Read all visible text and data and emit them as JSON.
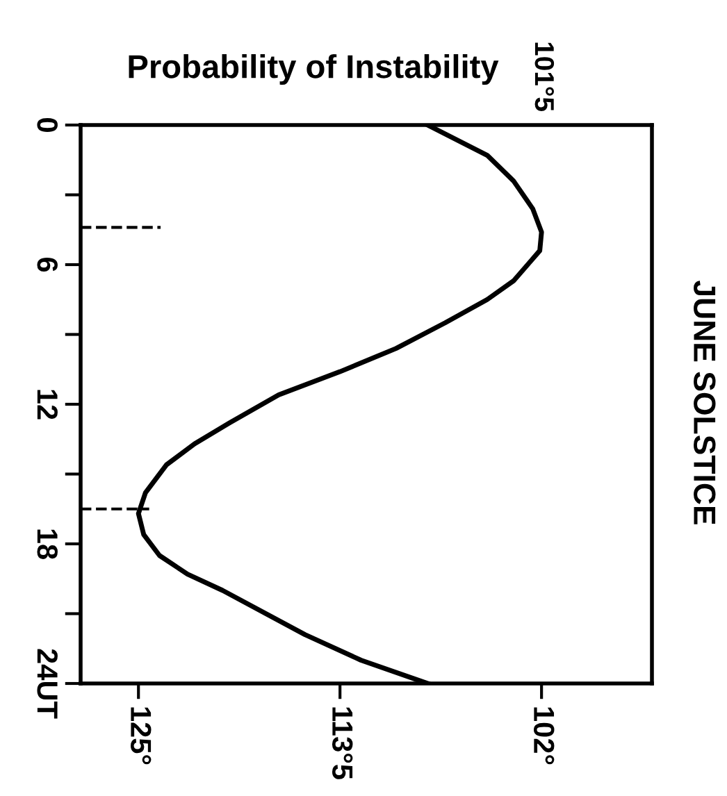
{
  "chart_data": {
    "type": "line",
    "title": "Probability of Instability",
    "annotations": [
      "JUNE SOLSTICE",
      "101°5"
    ],
    "xlim": [
      128.3,
      95.7
    ],
    "xticks": [
      {
        "value": 125,
        "label": "125°"
      },
      {
        "value": 113.5,
        "label": "113°5"
      },
      {
        "value": 102,
        "label": "102°"
      }
    ],
    "ylim": [
      24,
      0
    ],
    "yticks": [
      0,
      {
        "value": 3,
        "label": null
      },
      6,
      {
        "value": 9,
        "label": null
      },
      12,
      {
        "value": 15,
        "label": null
      },
      18,
      {
        "value": 21,
        "label": null
      },
      {
        "value": 24,
        "label": "24UT"
      }
    ],
    "series": [
      {
        "color": "#000000",
        "x": [
          108.5,
          105.1,
          103.6,
          102.5,
          102.0,
          102.1,
          103.6,
          105.1,
          107.5,
          110.3,
          113.5,
          117.0,
          119.8,
          121.8,
          123.4,
          124.6,
          125.0,
          124.7,
          123.8,
          122.2,
          120.2,
          115.5,
          112.3,
          108.5
        ],
        "values": [
          0,
          1.3,
          2.4,
          3.6,
          4.6,
          5.4,
          6.7,
          7.5,
          8.5,
          9.6,
          10.6,
          11.6,
          12.8,
          13.7,
          14.6,
          15.8,
          16.7,
          17.6,
          18.5,
          19.3,
          20.0,
          21.9,
          23.0,
          24.0
        ]
      }
    ],
    "ref_lines": [
      {
        "axis": "y",
        "value": 4.4,
        "line_style": "dashed",
        "color": "#000000"
      },
      {
        "axis": "y",
        "value": 16.5,
        "line_style": "dashed",
        "color": "#000000"
      }
    ],
    "grid": false,
    "legend": false,
    "marker": "none",
    "line_style": "solid"
  }
}
